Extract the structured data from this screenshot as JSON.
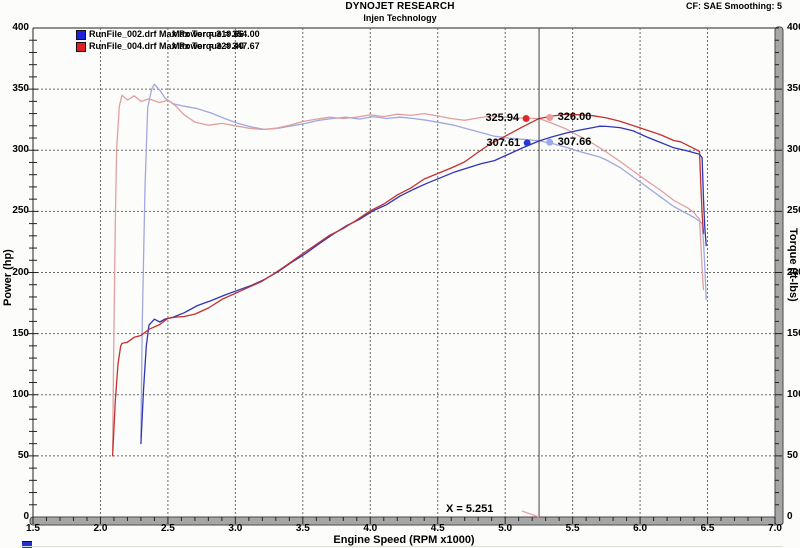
{
  "header": {
    "title": "DYNOJET RESEARCH",
    "subtitle": "Injen Technology",
    "cf": "CF: SAE  Smoothing: 5"
  },
  "legend": {
    "rows": [
      {
        "file_and_power": "RunFile_002.drf Max Power = 319.66",
        "torque": "Max Torque = 354.00",
        "color": "#2020dd"
      },
      {
        "file_and_power": "RunFile_004.drf Max Power = 329.40",
        "torque": "Max Torque = 347.67",
        "color": "#dd2020"
      }
    ]
  },
  "axes": {
    "x": {
      "title": "Engine Speed (RPM x1000)",
      "min": 1.5,
      "max": 7.0,
      "major_step": 0.5,
      "minor_step": 0.1,
      "tick_labels": [
        "1.5",
        "2.0",
        "2.5",
        "3.0",
        "3.5",
        "4.0",
        "4.5",
        "5.0",
        "5.5",
        "6.0",
        "6.5",
        "7.0"
      ]
    },
    "y_left": {
      "title": "Power (hp)",
      "min": 0,
      "max": 400,
      "major_step": 50,
      "minor_step": 10,
      "tick_labels": [
        "400",
        "350",
        "300",
        "250",
        "200",
        "150",
        "100",
        "50",
        "0"
      ]
    },
    "y_right": {
      "title": "Torque (ft-lbs)",
      "min": 0,
      "max": 400,
      "major_step": 50,
      "minor_step": 10,
      "tick_labels": [
        "400",
        "350",
        "300",
        "250",
        "200",
        "150",
        "100",
        "50",
        "0"
      ]
    }
  },
  "cursor": {
    "x_label": "X = 5.251",
    "x_value": 5.251,
    "markers": [
      {
        "text": "325.94",
        "side": "left",
        "color": "#e02828",
        "rpm": 5.155,
        "value": 326.0
      },
      {
        "text": "326.00",
        "side": "right",
        "color": "#f09a9a",
        "rpm": 5.33,
        "value": 326.8
      },
      {
        "text": "307.61",
        "side": "left",
        "color": "#2838d8",
        "rpm": 5.163,
        "value": 306.0
      },
      {
        "text": "307.66",
        "side": "right",
        "color": "#9aa8ee",
        "rpm": 5.33,
        "value": 306.5
      }
    ]
  },
  "colors": {
    "grid": "#6a6a6a",
    "axis_bar_fill": "#a6a6a6",
    "axis_bar_stroke": "#4a4a4a",
    "axis_line": "#222222",
    "cursor_line": "#444444",
    "pointer_line": "#f0a0a0"
  },
  "chart_data": {
    "type": "line",
    "title": "DYNOJET RESEARCH - Injen Technology",
    "xlabel": "Engine Speed (RPM x1000)",
    "ylabel_left": "Power (hp)",
    "ylabel_right": "Torque (ft-lbs)",
    "xlim": [
      1.5,
      7.0
    ],
    "ylim": [
      0,
      400
    ],
    "grid": true,
    "legend_position": "top-left",
    "cursor_x": 5.251,
    "cursor_readouts": {
      "run004_power_hp": 325.94,
      "run004_torque_ftlb": 326.0,
      "run002_power_hp": 307.61,
      "run002_torque_ftlb": 307.66
    },
    "max_values": {
      "run002_max_power": 319.66,
      "run002_max_torque": 354.0,
      "run004_max_power": 329.4,
      "run004_max_torque": 347.67
    },
    "series": [
      {
        "name": "RunFile_002.drf Torque",
        "axis": "right",
        "color": "#a0a8e0",
        "points": [
          [
            2.3,
            65
          ],
          [
            2.31,
            160
          ],
          [
            2.33,
            270
          ],
          [
            2.35,
            335
          ],
          [
            2.38,
            350
          ],
          [
            2.4,
            354
          ],
          [
            2.44,
            349
          ],
          [
            2.48,
            342.5
          ],
          [
            2.54,
            338
          ],
          [
            2.62,
            336
          ],
          [
            2.72,
            334
          ],
          [
            2.82,
            330.5
          ],
          [
            2.92,
            326
          ],
          [
            3.02,
            322
          ],
          [
            3.12,
            319
          ],
          [
            3.22,
            317
          ],
          [
            3.32,
            318
          ],
          [
            3.42,
            320
          ],
          [
            3.52,
            322
          ],
          [
            3.62,
            324.5
          ],
          [
            3.72,
            326
          ],
          [
            3.82,
            327
          ],
          [
            3.92,
            325.5
          ],
          [
            4.02,
            327.5
          ],
          [
            4.12,
            326
          ],
          [
            4.22,
            327
          ],
          [
            4.32,
            326
          ],
          [
            4.42,
            324.5
          ],
          [
            4.52,
            322.5
          ],
          [
            4.62,
            320.5
          ],
          [
            4.72,
            317.5
          ],
          [
            4.82,
            314.5
          ],
          [
            4.92,
            311.5
          ],
          [
            5.02,
            310
          ],
          [
            5.12,
            309
          ],
          [
            5.25,
            307.7
          ],
          [
            5.35,
            305.5
          ],
          [
            5.45,
            302.5
          ],
          [
            5.55,
            299
          ],
          [
            5.65,
            296
          ],
          [
            5.7,
            294.5
          ],
          [
            5.75,
            292
          ],
          [
            5.85,
            286
          ],
          [
            5.95,
            278
          ],
          [
            6.05,
            270
          ],
          [
            6.15,
            262
          ],
          [
            6.25,
            254
          ],
          [
            6.35,
            248
          ],
          [
            6.4,
            245
          ],
          [
            6.44,
            242
          ],
          [
            6.46,
            240
          ],
          [
            6.47,
            225
          ],
          [
            6.48,
            205
          ],
          [
            6.49,
            178
          ]
        ]
      },
      {
        "name": "RunFile_004.drf Torque",
        "axis": "right",
        "color": "#e0a0a0",
        "points": [
          [
            2.09,
            55
          ],
          [
            2.1,
            150
          ],
          [
            2.11,
            240
          ],
          [
            2.12,
            300
          ],
          [
            2.14,
            336
          ],
          [
            2.16,
            345
          ],
          [
            2.2,
            341
          ],
          [
            2.25,
            344.5
          ],
          [
            2.3,
            340
          ],
          [
            2.36,
            342
          ],
          [
            2.44,
            339
          ],
          [
            2.5,
            341
          ],
          [
            2.56,
            336
          ],
          [
            2.62,
            329
          ],
          [
            2.7,
            323
          ],
          [
            2.8,
            320.5
          ],
          [
            2.9,
            322
          ],
          [
            3.0,
            320
          ],
          [
            3.1,
            318
          ],
          [
            3.2,
            317
          ],
          [
            3.3,
            318
          ],
          [
            3.4,
            320.5
          ],
          [
            3.5,
            323.5
          ],
          [
            3.6,
            325.5
          ],
          [
            3.7,
            327
          ],
          [
            3.8,
            326
          ],
          [
            3.9,
            327
          ],
          [
            4.0,
            329
          ],
          [
            4.1,
            327.5
          ],
          [
            4.2,
            329.5
          ],
          [
            4.3,
            328.5
          ],
          [
            4.4,
            330
          ],
          [
            4.5,
            328
          ],
          [
            4.6,
            326
          ],
          [
            4.7,
            324.5
          ],
          [
            4.8,
            326.5
          ],
          [
            4.9,
            328
          ],
          [
            5.0,
            327
          ],
          [
            5.1,
            326.5
          ],
          [
            5.25,
            326
          ],
          [
            5.35,
            322
          ],
          [
            5.45,
            317.5
          ],
          [
            5.55,
            311.5
          ],
          [
            5.65,
            305.5
          ],
          [
            5.75,
            298.5
          ],
          [
            5.85,
            291
          ],
          [
            5.95,
            283
          ],
          [
            6.05,
            275
          ],
          [
            6.15,
            267.5
          ],
          [
            6.25,
            259
          ],
          [
            6.35,
            253
          ],
          [
            6.4,
            249
          ],
          [
            6.42,
            246
          ],
          [
            6.44,
            244
          ],
          [
            6.45,
            225
          ],
          [
            6.46,
            203
          ],
          [
            6.47,
            186
          ]
        ]
      },
      {
        "name": "RunFile_002.drf Power",
        "axis": "left",
        "color": "#2e35b5",
        "points": [
          [
            2.3,
            60
          ],
          [
            2.32,
            105
          ],
          [
            2.34,
            140
          ],
          [
            2.36,
            157
          ],
          [
            2.4,
            161.8
          ],
          [
            2.44,
            159.5
          ],
          [
            2.48,
            162
          ],
          [
            2.54,
            163.5
          ],
          [
            2.62,
            167
          ],
          [
            2.72,
            173
          ],
          [
            2.82,
            177
          ],
          [
            2.92,
            181.5
          ],
          [
            3.02,
            185.5
          ],
          [
            3.12,
            189.5
          ],
          [
            3.22,
            194.5
          ],
          [
            3.32,
            201
          ],
          [
            3.42,
            208.5
          ],
          [
            3.52,
            215.5
          ],
          [
            3.62,
            223.5
          ],
          [
            3.72,
            231
          ],
          [
            3.82,
            238
          ],
          [
            3.92,
            243.5
          ],
          [
            4.02,
            250.5
          ],
          [
            4.12,
            255.5
          ],
          [
            4.22,
            262.5
          ],
          [
            4.32,
            268
          ],
          [
            4.42,
            273
          ],
          [
            4.52,
            277.5
          ],
          [
            4.62,
            282
          ],
          [
            4.72,
            285.5
          ],
          [
            4.82,
            289
          ],
          [
            4.92,
            291.5
          ],
          [
            5.02,
            296.5
          ],
          [
            5.12,
            301.5
          ],
          [
            5.25,
            307.6
          ],
          [
            5.35,
            311
          ],
          [
            5.45,
            314
          ],
          [
            5.55,
            316.5
          ],
          [
            5.65,
            318.5
          ],
          [
            5.7,
            319.7
          ],
          [
            5.75,
            319.5
          ],
          [
            5.85,
            318.5
          ],
          [
            5.95,
            315.8
          ],
          [
            6.05,
            310.8
          ],
          [
            6.15,
            306.4
          ],
          [
            6.25,
            302
          ],
          [
            6.35,
            299.5
          ],
          [
            6.4,
            298
          ],
          [
            6.44,
            296.8
          ],
          [
            6.46,
            294
          ],
          [
            6.47,
            260
          ],
          [
            6.48,
            237
          ],
          [
            6.49,
            222
          ]
        ]
      },
      {
        "name": "RunFile_004.drf Power",
        "axis": "left",
        "color": "#c23030",
        "points": [
          [
            2.09,
            50
          ],
          [
            2.11,
            95
          ],
          [
            2.13,
            125
          ],
          [
            2.15,
            140
          ],
          [
            2.16,
            142
          ],
          [
            2.2,
            143
          ],
          [
            2.25,
            147
          ],
          [
            2.3,
            148.5
          ],
          [
            2.36,
            153.5
          ],
          [
            2.44,
            157.5
          ],
          [
            2.5,
            162.5
          ],
          [
            2.56,
            163.5
          ],
          [
            2.62,
            164
          ],
          [
            2.7,
            166
          ],
          [
            2.8,
            171
          ],
          [
            2.9,
            178
          ],
          [
            3.0,
            183
          ],
          [
            3.1,
            188
          ],
          [
            3.2,
            193
          ],
          [
            3.3,
            200
          ],
          [
            3.4,
            207.5
          ],
          [
            3.5,
            215.5
          ],
          [
            3.6,
            223
          ],
          [
            3.7,
            230.5
          ],
          [
            3.8,
            236
          ],
          [
            3.9,
            243
          ],
          [
            4.0,
            250.5
          ],
          [
            4.1,
            256
          ],
          [
            4.2,
            263.5
          ],
          [
            4.3,
            269
          ],
          [
            4.4,
            276.5
          ],
          [
            4.5,
            281
          ],
          [
            4.6,
            285.5
          ],
          [
            4.7,
            290.5
          ],
          [
            4.8,
            298.5
          ],
          [
            4.9,
            306
          ],
          [
            5.0,
            311.5
          ],
          [
            5.1,
            317.5
          ],
          [
            5.25,
            325.9
          ],
          [
            5.35,
            328
          ],
          [
            5.45,
            329.4
          ],
          [
            5.55,
            329
          ],
          [
            5.65,
            328.3
          ],
          [
            5.75,
            326.5
          ],
          [
            5.85,
            323.8
          ],
          [
            5.95,
            320.2
          ],
          [
            6.05,
            316.5
          ],
          [
            6.15,
            312.8
          ],
          [
            6.25,
            308
          ],
          [
            6.3,
            306.9
          ],
          [
            6.38,
            302.5
          ],
          [
            6.42,
            300.3
          ],
          [
            6.44,
            299
          ],
          [
            6.45,
            272
          ],
          [
            6.46,
            248
          ],
          [
            6.47,
            232
          ]
        ]
      }
    ]
  }
}
